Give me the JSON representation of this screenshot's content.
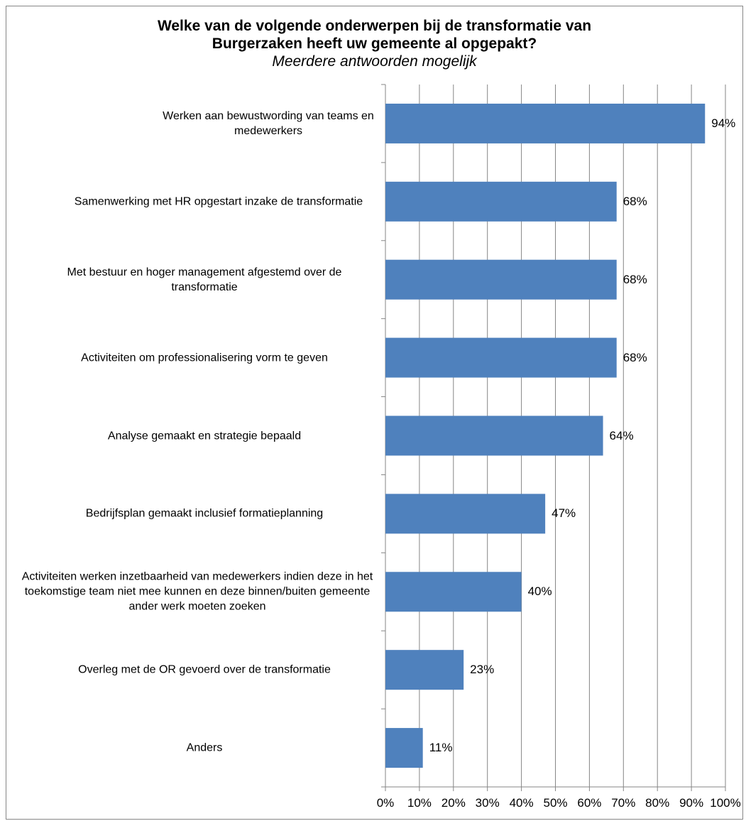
{
  "chart_data": {
    "type": "bar",
    "orientation": "horizontal",
    "title": [
      "Welke van de volgende onderwerpen bij de transformatie van",
      "Burgerzaken heeft uw gemeente al opgepakt?"
    ],
    "subtitle": "Meerdere antwoorden mogelijk",
    "categories": [
      "Werken aan bewustwording van teams en medewerkers",
      "Samenwerking met HR opgestart inzake de transformatie",
      "Met bestuur en hoger management afgestemd over de transformatie",
      "Activiteiten om professionalisering vorm te geven",
      "Analyse gemaakt en strategie bepaald",
      "Bedrijfsplan gemaakt inclusief formatieplanning",
      "Activiteiten werken inzetbaarheid van medewerkers indien deze in het toekomstige team niet mee kunnen en deze binnen/buiten gemeente ander werk moeten zoeken",
      "Overleg met de OR gevoerd over de transformatie",
      "Anders"
    ],
    "values": [
      94,
      68,
      68,
      68,
      64,
      47,
      40,
      23,
      11
    ],
    "data_labels": [
      "94%",
      "68%",
      "68%",
      "68%",
      "64%",
      "47%",
      "40%",
      "23%",
      "11%"
    ],
    "xlim": [
      0,
      100
    ],
    "xticks": [
      "0%",
      "10%",
      "20%",
      "30%",
      "40%",
      "50%",
      "60%",
      "70%",
      "80%",
      "90%",
      "100%"
    ],
    "grid": "vertical",
    "legend": "none",
    "bar_color": "#4F81BD"
  }
}
